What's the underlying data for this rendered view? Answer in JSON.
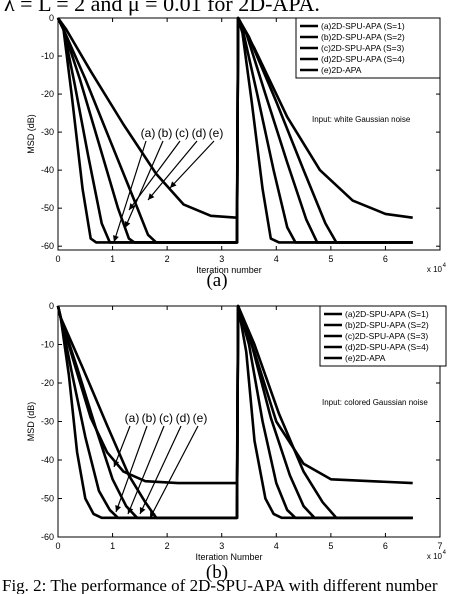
{
  "caption_top": "λ = L = 2 and μ = 0.01 for 2D-APA.",
  "caption_bottom": "Fig. 2: The performance of 2D-SPU-APA with different number",
  "chart_data": [
    {
      "type": "line",
      "panel_label": "(a)",
      "xlabel": "Iteration number",
      "ylabel": "MSD (dB)",
      "x_exponent_label": "x 10",
      "x_exponent_power": "4",
      "annotation": "Input: white Gaussian noise",
      "arrow_labels": [
        "(a)",
        "(b)",
        "(c)",
        "(d)",
        "(e)"
      ],
      "xlim": [
        0,
        7
      ],
      "ylim": [
        -61,
        0
      ],
      "xticks": [
        0,
        1,
        2,
        3,
        4,
        5,
        6
      ],
      "yticks": [
        0,
        -10,
        -20,
        -30,
        -40,
        -50,
        -60
      ],
      "legend_position": "top-right",
      "series": [
        {
          "name": "(a)2D-SPU-APA (S=1)",
          "x": [
            0,
            0.1,
            0.25,
            0.45,
            0.6,
            0.7,
            0.8,
            3.28,
            3.3,
            3.38,
            3.55,
            3.75,
            3.9,
            4.05,
            6.5
          ],
          "y": [
            0,
            -3,
            -20,
            -45,
            -58,
            -59,
            -59,
            -59,
            0,
            -4,
            -22,
            -45,
            -58,
            -59,
            -59
          ]
        },
        {
          "name": "(b)2D-SPU-APA (S=2)",
          "x": [
            0,
            0.1,
            0.3,
            0.55,
            0.8,
            0.95,
            1.05,
            3.28,
            3.3,
            3.4,
            3.65,
            3.95,
            4.2,
            4.35,
            6.5
          ],
          "y": [
            0,
            -3,
            -17,
            -36,
            -54,
            -59,
            -59,
            -59,
            0,
            -4,
            -20,
            -40,
            -55,
            -59,
            -59
          ]
        },
        {
          "name": "(c)2D-SPU-APA (S=3)",
          "x": [
            0,
            0.1,
            0.4,
            0.75,
            1.1,
            1.3,
            1.4,
            3.28,
            3.3,
            3.45,
            3.8,
            4.2,
            4.55,
            4.75,
            6.5
          ],
          "y": [
            0,
            -3,
            -16,
            -33,
            -50,
            -58,
            -59,
            -59,
            0,
            -4,
            -20,
            -38,
            -53,
            -59,
            -59
          ]
        },
        {
          "name": "(d)2D-SPU-APA (S=4)",
          "x": [
            0,
            0.1,
            0.5,
            0.95,
            1.4,
            1.65,
            1.8,
            3.28,
            3.3,
            3.5,
            4.0,
            4.5,
            4.9,
            5.1,
            6.5
          ],
          "y": [
            0,
            -3,
            -16,
            -32,
            -48,
            -57,
            -59,
            -59,
            0,
            -5,
            -22,
            -40,
            -54,
            -59,
            -59
          ]
        },
        {
          "name": "(e)2D-APA",
          "x": [
            0,
            0.15,
            0.6,
            1.2,
            1.8,
            2.3,
            2.8,
            3.28,
            3.3,
            3.6,
            4.2,
            4.8,
            5.4,
            6.0,
            6.5
          ],
          "y": [
            0,
            -3,
            -14,
            -28,
            -41,
            -49,
            -52,
            -52.5,
            0,
            -8,
            -26,
            -40,
            -48,
            -51.5,
            -52.5
          ]
        }
      ]
    },
    {
      "type": "line",
      "panel_label": "(b)",
      "xlabel": "Iteration Number",
      "ylabel": "MSD (dB)",
      "x_exponent_label": "x 10",
      "x_exponent_power": "4",
      "annotation": "Input: colored Gaussian noise",
      "arrow_labels": [
        "(a)",
        "(b)",
        "(c)",
        "(d)",
        "(e)"
      ],
      "xlim": [
        0,
        7
      ],
      "ylim": [
        -60,
        0
      ],
      "xticks": [
        0,
        1,
        2,
        3,
        4,
        5,
        6,
        7
      ],
      "yticks": [
        0,
        -10,
        -20,
        -30,
        -40,
        -50,
        -60
      ],
      "legend_position": "top-right",
      "series": [
        {
          "name": "(a)2D-SPU-APA (S=1)",
          "x": [
            0,
            0.05,
            0.2,
            0.35,
            0.5,
            0.65,
            0.8,
            3.28,
            3.3,
            3.45,
            3.6,
            3.8,
            3.95,
            4.1,
            6.5
          ],
          "y": [
            0,
            -3,
            -18,
            -38,
            -50,
            -54,
            -55,
            -55,
            0,
            -12,
            -35,
            -50,
            -54,
            -55,
            -55
          ]
        },
        {
          "name": "(b)2D-SPU-APA (S=2)",
          "x": [
            0,
            0.05,
            0.25,
            0.5,
            0.75,
            0.95,
            1.1,
            3.28,
            3.3,
            3.5,
            3.75,
            4.0,
            4.2,
            4.35,
            6.5
          ],
          "y": [
            0,
            -3,
            -17,
            -34,
            -48,
            -53,
            -55,
            -55,
            0,
            -10,
            -30,
            -46,
            -53,
            -55,
            -55
          ]
        },
        {
          "name": "(c)2D-SPU-APA (S=3)",
          "x": [
            0,
            0.05,
            0.35,
            0.7,
            1.0,
            1.25,
            1.45,
            3.28,
            3.3,
            3.55,
            3.9,
            4.25,
            4.5,
            4.7,
            6.5
          ],
          "y": [
            0,
            -3,
            -16,
            -32,
            -45,
            -52,
            -55,
            -55,
            0,
            -10,
            -29,
            -44,
            -52,
            -55,
            -55
          ]
        },
        {
          "name": "(d)2D-SPU-APA (S=4)",
          "x": [
            0,
            0.05,
            0.45,
            0.9,
            1.3,
            1.6,
            1.8,
            3.28,
            3.3,
            3.6,
            4.05,
            4.5,
            4.85,
            5.1,
            6.5
          ],
          "y": [
            0,
            -3,
            -16,
            -31,
            -44,
            -51,
            -55,
            -55,
            0,
            -10,
            -28,
            -43,
            -51,
            -55,
            -55
          ]
        },
        {
          "name": "(e)2D-APA",
          "x": [
            0,
            0.05,
            0.3,
            0.6,
            0.9,
            1.2,
            1.6,
            2.2,
            3.28,
            3.3,
            3.6,
            4.0,
            4.5,
            5.0,
            6.5
          ],
          "y": [
            0,
            -3,
            -15,
            -29,
            -38,
            -43,
            -45.5,
            -46,
            -46,
            0,
            -12,
            -30,
            -41,
            -45,
            -46
          ]
        }
      ]
    }
  ]
}
